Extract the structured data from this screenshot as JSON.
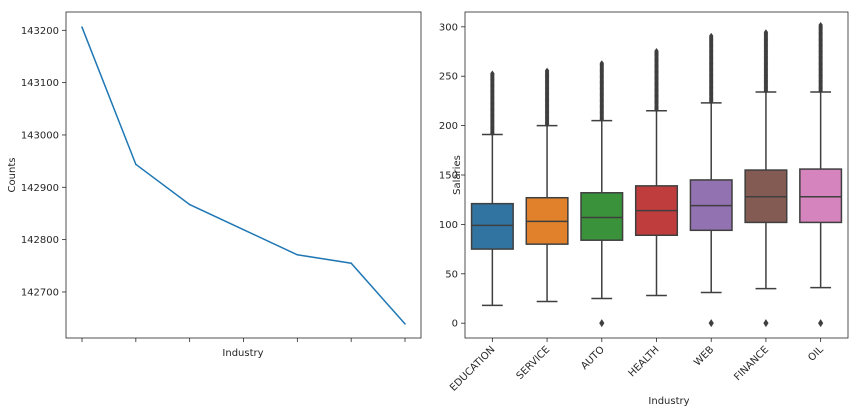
{
  "chart_data": [
    {
      "type": "line",
      "xlabel": "Industry",
      "ylabel": "Counts",
      "x_tick_labels_visible": false,
      "values": [
        143206,
        142944,
        142867,
        142819,
        142771,
        142755,
        142639
      ],
      "yticks": [
        142700,
        142800,
        142900,
        143000,
        143100,
        143200
      ],
      "ytick_labels": [
        "142700",
        "142800",
        "142900",
        "143000",
        "143100",
        "143200"
      ],
      "ylim": [
        142612,
        143235
      ],
      "color": "#1f77b4",
      "grid": false
    },
    {
      "type": "box",
      "xlabel": "Industry",
      "ylabel": "Salaries",
      "categories": [
        "EDUCATION",
        "SERVICE",
        "AUTO",
        "HEALTH",
        "WEB",
        "FINANCE",
        "OIL"
      ],
      "yticks": [
        0,
        50,
        100,
        150,
        200,
        250,
        300
      ],
      "ytick_labels": [
        "0",
        "50",
        "100",
        "150",
        "200",
        "250",
        "300"
      ],
      "ylim": [
        -15,
        315
      ],
      "grid": false,
      "boxes": [
        {
          "name": "EDUCATION",
          "color": "#3274a1",
          "whisker_low": 18,
          "q1": 75,
          "median": 99,
          "q3": 121,
          "whisker_high": 191,
          "outliers_high": [
            192,
            253
          ],
          "outliers_low": []
        },
        {
          "name": "SERVICE",
          "color": "#e1812c",
          "whisker_low": 22,
          "q1": 80,
          "median": 103,
          "q3": 127,
          "whisker_high": 200,
          "outliers_high": [
            201,
            256
          ],
          "outliers_low": []
        },
        {
          "name": "AUTO",
          "color": "#3a923a",
          "whisker_low": 25,
          "q1": 84,
          "median": 107,
          "q3": 132,
          "whisker_high": 205,
          "outliers_high": [
            206,
            264
          ],
          "outliers_low": [
            0
          ]
        },
        {
          "name": "HEALTH",
          "color": "#c03d3e",
          "whisker_low": 28,
          "q1": 89,
          "median": 114,
          "q3": 139,
          "whisker_high": 215,
          "outliers_high": [
            216,
            276
          ],
          "outliers_low": []
        },
        {
          "name": "WEB",
          "color": "#9372b2",
          "whisker_low": 31,
          "q1": 94,
          "median": 119,
          "q3": 145,
          "whisker_high": 223,
          "outliers_high": [
            224,
            291
          ],
          "outliers_low": [
            0
          ]
        },
        {
          "name": "FINANCE",
          "color": "#845b53",
          "whisker_low": 35,
          "q1": 102,
          "median": 128,
          "q3": 155,
          "whisker_high": 234,
          "outliers_high": [
            235,
            295
          ],
          "outliers_low": [
            0
          ]
        },
        {
          "name": "OIL",
          "color": "#d684bd",
          "whisker_low": 36,
          "q1": 102,
          "median": 128,
          "q3": 156,
          "whisker_high": 234,
          "outliers_high": [
            235,
            302
          ],
          "outliers_low": [
            0
          ]
        }
      ]
    }
  ]
}
